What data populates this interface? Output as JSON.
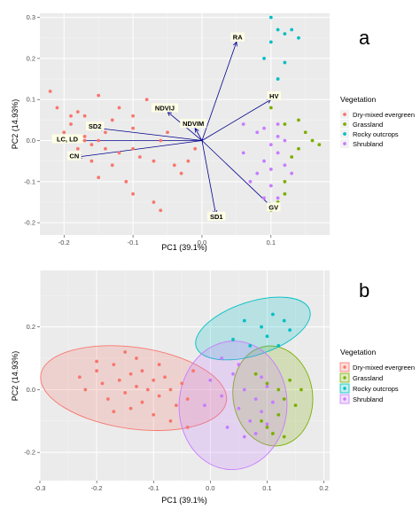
{
  "chart_data": [
    {
      "type": "scatter",
      "panel": "a",
      "xlabel": "PC1 (39.1%)",
      "ylabel": "PC2 (14.93%)",
      "xlim": [
        -0.235,
        0.185
      ],
      "ylim": [
        -0.23,
        0.31
      ],
      "xticks": [
        -0.2,
        -0.1,
        0.0,
        0.1
      ],
      "xtick_labels": [
        "-0.2",
        "-0.1",
        "0.0",
        "0.1"
      ],
      "yticks": [
        -0.2,
        -0.1,
        0.0,
        0.1,
        0.2,
        0.3
      ],
      "ytick_labels": [
        "-0.2",
        "-0.1",
        "0.0",
        "0.1",
        "0.2",
        "0.3"
      ],
      "grid": true,
      "legend_title": "Vegetation",
      "legend_placement": "right",
      "groups": [
        {
          "name": "Dry-mixed evergreen",
          "color": "#F8766D",
          "points": [
            [
              -0.22,
              0.12
            ],
            [
              -0.21,
              0.08
            ],
            [
              -0.19,
              0.06
            ],
            [
              -0.18,
              0.07
            ],
            [
              -0.19,
              0.04
            ],
            [
              -0.2,
              0.02
            ],
            [
              -0.17,
              0.01
            ],
            [
              -0.17,
              0.0
            ],
            [
              -0.16,
              -0.01
            ],
            [
              -0.18,
              -0.02
            ],
            [
              -0.15,
              0.0
            ],
            [
              -0.14,
              0.02
            ],
            [
              -0.14,
              -0.02
            ],
            [
              -0.12,
              -0.03
            ],
            [
              -0.1,
              0.03
            ],
            [
              -0.1,
              -0.02
            ],
            [
              -0.13,
              0.05
            ],
            [
              -0.12,
              0.08
            ],
            [
              -0.1,
              0.06
            ],
            [
              -0.09,
              -0.04
            ],
            [
              -0.07,
              -0.05
            ],
            [
              -0.06,
              0.0
            ],
            [
              -0.05,
              0.02
            ],
            [
              -0.04,
              -0.06
            ],
            [
              -0.15,
              -0.09
            ],
            [
              -0.11,
              -0.1
            ],
            [
              -0.1,
              -0.13
            ],
            [
              -0.07,
              -0.15
            ],
            [
              -0.03,
              -0.08
            ],
            [
              -0.02,
              -0.05
            ],
            [
              -0.01,
              -0.02
            ],
            [
              -0.16,
              -0.05
            ],
            [
              -0.13,
              -0.06
            ],
            [
              -0.08,
              0.1
            ],
            [
              -0.06,
              -0.17
            ],
            [
              -0.17,
              0.06
            ],
            [
              -0.15,
              0.11
            ]
          ]
        },
        {
          "name": "Grassland",
          "color": "#7CAE00",
          "points": [
            [
              0.1,
              0.08
            ],
            [
              0.12,
              0.04
            ],
            [
              0.14,
              0.05
            ],
            [
              0.15,
              0.02
            ],
            [
              0.16,
              0.0
            ],
            [
              0.17,
              -0.01
            ],
            [
              0.14,
              -0.02
            ],
            [
              0.13,
              -0.04
            ],
            [
              0.12,
              -0.1
            ],
            [
              0.12,
              -0.13
            ],
            [
              0.11,
              -0.15
            ],
            [
              0.1,
              -0.17
            ]
          ]
        },
        {
          "name": "Rocky outcrops",
          "color": "#00BFC4",
          "points": [
            [
              0.1,
              0.3
            ],
            [
              0.13,
              0.27
            ],
            [
              0.11,
              0.27
            ],
            [
              0.12,
              0.26
            ],
            [
              0.14,
              0.25
            ],
            [
              0.1,
              0.24
            ],
            [
              0.09,
              0.2
            ],
            [
              0.12,
              0.19
            ],
            [
              0.11,
              0.15
            ]
          ]
        },
        {
          "name": "Shrubland",
          "color": "#C77CFF",
          "points": [
            [
              0.06,
              0.04
            ],
            [
              0.08,
              0.02
            ],
            [
              0.09,
              0.03
            ],
            [
              0.11,
              0.01
            ],
            [
              0.1,
              -0.01
            ],
            [
              0.12,
              0.0
            ],
            [
              0.11,
              -0.03
            ],
            [
              0.09,
              -0.05
            ],
            [
              0.1,
              -0.07
            ],
            [
              0.12,
              -0.06
            ],
            [
              0.08,
              -0.08
            ],
            [
              0.07,
              -0.1
            ],
            [
              0.1,
              -0.11
            ],
            [
              0.11,
              -0.14
            ],
            [
              0.09,
              -0.14
            ],
            [
              0.06,
              -0.03
            ],
            [
              0.13,
              -0.08
            ],
            [
              0.11,
              0.04
            ]
          ]
        }
      ],
      "loadings": [
        {
          "name": "RA",
          "x": 0.05,
          "y": 0.24
        },
        {
          "name": "HV",
          "x": 0.1,
          "y": 0.1
        },
        {
          "name": "NDVIJ",
          "x": -0.05,
          "y": 0.07
        },
        {
          "name": "NDVIM",
          "x": -0.01,
          "y": 0.03
        },
        {
          "name": "SD2",
          "x": -0.15,
          "y": 0.03
        },
        {
          "name": "LC, LD",
          "x": -0.19,
          "y": 0.0
        },
        {
          "name": "CN",
          "x": -0.18,
          "y": -0.04
        },
        {
          "name": "SD1",
          "x": 0.02,
          "y": -0.18
        },
        {
          "name": "GV",
          "x": 0.1,
          "y": -0.16
        }
      ],
      "loading_color": "#00008B"
    },
    {
      "type": "scatter",
      "panel": "b",
      "xlabel": "PC1 (39.1%)",
      "ylabel": "PC2 (14.93%)",
      "xlim": [
        -0.3,
        0.21
      ],
      "ylim": [
        -0.29,
        0.38
      ],
      "xticks": [
        -0.3,
        -0.2,
        -0.1,
        0.0,
        0.1,
        0.2
      ],
      "xtick_labels": [
        "-0.3",
        "-0.2",
        "-0.1",
        "0.0",
        "0.1",
        "0.2"
      ],
      "yticks": [
        -0.2,
        0.0,
        0.2
      ],
      "ytick_labels": [
        "-0.2",
        "0.0",
        "0.2"
      ],
      "grid": true,
      "legend_title": "Vegetation",
      "legend_placement": "right",
      "groups": [
        {
          "name": "Dry-mixed evergreen",
          "color": "#F8766D",
          "ellipse": {
            "cx": -0.135,
            "cy": 0.005,
            "rx": 0.165,
            "ry": 0.13,
            "rotate": 8
          },
          "points": [
            [
              -0.23,
              0.04
            ],
            [
              -0.22,
              0.0
            ],
            [
              -0.2,
              0.06
            ],
            [
              -0.19,
              0.02
            ],
            [
              -0.18,
              -0.03
            ],
            [
              -0.17,
              0.08
            ],
            [
              -0.16,
              0.03
            ],
            [
              -0.15,
              -0.01
            ],
            [
              -0.14,
              0.05
            ],
            [
              -0.13,
              0.01
            ],
            [
              -0.12,
              -0.04
            ],
            [
              -0.12,
              0.06
            ],
            [
              -0.11,
              0.0
            ],
            [
              -0.1,
              0.03
            ],
            [
              -0.09,
              -0.02
            ],
            [
              -0.08,
              0.04
            ],
            [
              -0.07,
              0.0
            ],
            [
              -0.06,
              -0.05
            ],
            [
              -0.05,
              0.02
            ],
            [
              -0.04,
              -0.03
            ],
            [
              -0.17,
              -0.07
            ],
            [
              -0.14,
              -0.06
            ],
            [
              -0.1,
              -0.08
            ],
            [
              -0.07,
              -0.1
            ],
            [
              -0.04,
              -0.12
            ],
            [
              -0.13,
              0.1
            ],
            [
              -0.09,
              0.08
            ],
            [
              -0.2,
              0.09
            ],
            [
              -0.15,
              0.12
            ],
            [
              -0.03,
              0.06
            ]
          ]
        },
        {
          "name": "Grassland",
          "color": "#7CAE00",
          "ellipse": {
            "cx": 0.11,
            "cy": -0.02,
            "rx": 0.07,
            "ry": 0.16,
            "rotate": -8
          },
          "points": [
            [
              0.08,
              0.05
            ],
            [
              0.1,
              0.02
            ],
            [
              0.12,
              0.0
            ],
            [
              0.13,
              -0.03
            ],
            [
              0.14,
              0.03
            ],
            [
              0.15,
              -0.05
            ],
            [
              0.16,
              0.0
            ],
            [
              0.12,
              -0.08
            ],
            [
              0.1,
              -0.12
            ],
            [
              0.09,
              -0.1
            ],
            [
              0.11,
              -0.14
            ],
            [
              0.13,
              -0.15
            ]
          ]
        },
        {
          "name": "Rocky outcrops",
          "color": "#00BFC4",
          "ellipse": {
            "cx": 0.075,
            "cy": 0.195,
            "rx": 0.105,
            "ry": 0.085,
            "rotate": -18
          },
          "points": [
            [
              0.04,
              0.16
            ],
            [
              0.07,
              0.14
            ],
            [
              0.1,
              0.17
            ],
            [
              0.12,
              0.14
            ],
            [
              0.09,
              0.2
            ],
            [
              0.13,
              0.22
            ],
            [
              0.11,
              0.24
            ],
            [
              0.14,
              0.19
            ],
            [
              0.06,
              0.22
            ]
          ]
        },
        {
          "name": "Shrubland",
          "color": "#C77CFF",
          "ellipse": {
            "cx": 0.04,
            "cy": -0.05,
            "rx": 0.095,
            "ry": 0.205,
            "rotate": 3
          },
          "points": [
            [
              0.0,
              0.03
            ],
            [
              0.02,
              -0.02
            ],
            [
              0.04,
              0.05
            ],
            [
              0.05,
              -0.06
            ],
            [
              0.06,
              0.0
            ],
            [
              0.07,
              -0.1
            ],
            [
              0.08,
              -0.03
            ],
            [
              0.09,
              -0.07
            ],
            [
              0.1,
              0.01
            ],
            [
              0.03,
              -0.12
            ],
            [
              0.06,
              -0.15
            ],
            [
              0.08,
              -0.14
            ],
            [
              0.1,
              -0.11
            ],
            [
              0.05,
              0.08
            ],
            [
              0.02,
              0.1
            ],
            [
              0.11,
              -0.04
            ],
            [
              -0.01,
              -0.05
            ],
            [
              0.09,
              0.04
            ]
          ]
        }
      ]
    }
  ],
  "panel_letters": {
    "a": "a",
    "b": "b"
  },
  "legend": {
    "title": "Vegetation",
    "items": [
      {
        "label": "Dry-mixed evergreen",
        "color": "#F8766D"
      },
      {
        "label": "Grassland",
        "color": "#7CAE00"
      },
      {
        "label": "Rocky outcrops",
        "color": "#00BFC4"
      },
      {
        "label": "Shrubland",
        "color": "#C77CFF"
      }
    ]
  }
}
